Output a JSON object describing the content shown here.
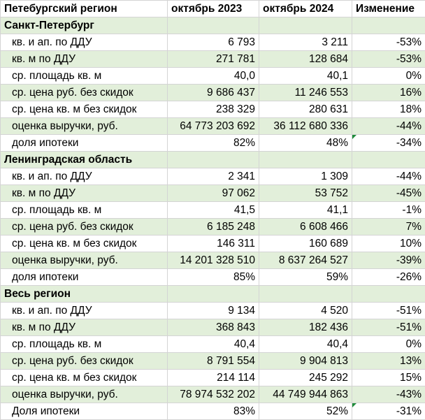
{
  "header": {
    "region": "Петебургский регион",
    "col2023": "октябрь 2023",
    "col2024": "октябрь 2024",
    "change": "Изменение"
  },
  "sections": [
    {
      "title": "Санкт-Петербург",
      "rows": [
        {
          "label": "кв. и ап. по ДДУ",
          "v2023": "6 793",
          "v2024": "3 211",
          "change": "-53%"
        },
        {
          "label": "кв. м по ДДУ",
          "v2023": "271 781",
          "v2024": "128 684",
          "change": "-53%"
        },
        {
          "label": "ср. площадь кв. м",
          "v2023": "40,0",
          "v2024": "40,1",
          "change": "0%"
        },
        {
          "label": "ср. цена руб. без скидок",
          "v2023": "9 686 437",
          "v2024": "11 246 553",
          "change": "16%"
        },
        {
          "label": "ср. цена кв. м без скидок",
          "v2023": "238 329",
          "v2024": "280 631",
          "change": "18%"
        },
        {
          "label": "оценка выручки, руб.",
          "v2023": "64 773 203 692",
          "v2024": "36 112 680 336",
          "change": "-44%"
        },
        {
          "label": "доля ипотеки",
          "v2023": "82%",
          "v2024": "48%",
          "change": "-34%"
        }
      ]
    },
    {
      "title": "Ленинградская область",
      "rows": [
        {
          "label": "кв. и ап. по ДДУ",
          "v2023": "2 341",
          "v2024": "1 309",
          "change": "-44%"
        },
        {
          "label": "кв. м по ДДУ",
          "v2023": "97 062",
          "v2024": "53 752",
          "change": "-45%"
        },
        {
          "label": "ср. площадь кв. м",
          "v2023": "41,5",
          "v2024": "41,1",
          "change": "-1%"
        },
        {
          "label": "ср. цена руб. без скидок",
          "v2023": "6 185 248",
          "v2024": "6 608 466",
          "change": "7%"
        },
        {
          "label": "ср. цена кв. м без скидок",
          "v2023": "146 311",
          "v2024": "160 689",
          "change": "10%"
        },
        {
          "label": "оценка выручки, руб.",
          "v2023": "14 201 328 510",
          "v2024": "8 637 264 527",
          "change": "-39%"
        },
        {
          "label": "доля ипотеки",
          "v2023": "85%",
          "v2024": "59%",
          "change": "-26%"
        }
      ]
    },
    {
      "title": "Весь регион",
      "rows": [
        {
          "label": "кв. и ап. по ДДУ",
          "v2023": "9 134",
          "v2024": "4 520",
          "change": "-51%"
        },
        {
          "label": "кв. м по ДДУ",
          "v2023": "368 843",
          "v2024": "182 436",
          "change": "-51%"
        },
        {
          "label": "ср. площадь кв. м",
          "v2023": "40,4",
          "v2024": "40,4",
          "change": "0%"
        },
        {
          "label": "ср. цена руб. без скидок",
          "v2023": "8 791 554",
          "v2024": "9 904 813",
          "change": "13%"
        },
        {
          "label": "ср. цена кв. м без скидок",
          "v2023": "214 114",
          "v2024": "245 292",
          "change": "15%"
        },
        {
          "label": "оценка выручки, руб.",
          "v2023": "78 974 532 202",
          "v2024": "44 749 944 863",
          "change": "-43%"
        },
        {
          "label": "Доля ипотеки",
          "v2023": "83%",
          "v2024": "52%",
          "change": "-31%"
        }
      ]
    }
  ],
  "colors": {
    "band_green": "#e2efda",
    "gridline": "#d4d4d4",
    "flag_marker": "#1e8c3a"
  }
}
